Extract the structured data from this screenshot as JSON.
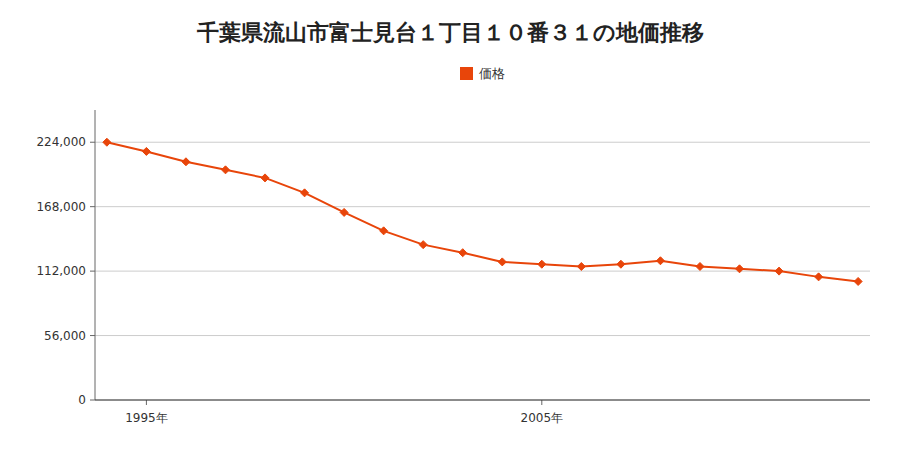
{
  "chart_data": {
    "type": "line",
    "title": "千葉県流山市富士見台１丁目１０番３１の地価推移",
    "x": [
      1994,
      1995,
      1996,
      1997,
      1998,
      1999,
      2000,
      2001,
      2002,
      2003,
      2004,
      2005,
      2006,
      2007,
      2008,
      2009,
      2010,
      2011,
      2012,
      2013
    ],
    "series": [
      {
        "name": "価格",
        "color": "#e8450a",
        "marker": "diamond",
        "values": [
          224000,
          216000,
          207000,
          200000,
          193000,
          180000,
          163000,
          147000,
          135000,
          128000,
          120000,
          118000,
          116000,
          118000,
          121000,
          116000,
          114000,
          112000,
          107000,
          103000
        ]
      }
    ],
    "xlim": [
      1993.7,
      2013.3
    ],
    "xticks": [
      {
        "value": 1995,
        "label": "1995年"
      },
      {
        "value": 2005,
        "label": "2005年"
      }
    ],
    "ylim": [
      0,
      252000
    ],
    "yticks": [
      0,
      {
        "value": 56000,
        "label": "56,000"
      },
      {
        "value": 112000,
        "label": "112,000"
      },
      {
        "value": 168000,
        "label": "168,000"
      },
      {
        "value": 224000,
        "label": "224,000"
      }
    ],
    "grid": "y",
    "legend": "top"
  }
}
